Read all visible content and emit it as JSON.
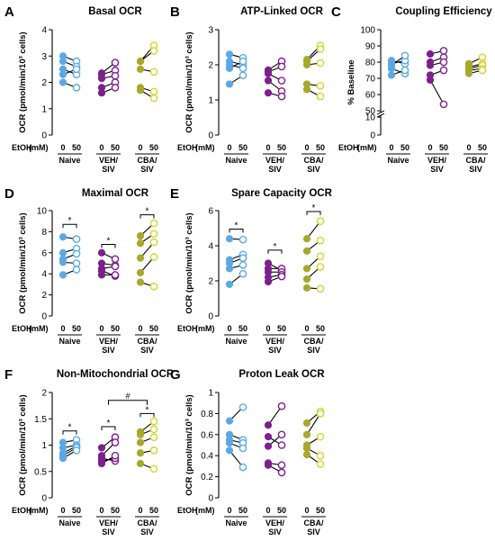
{
  "figure": {
    "ylabel_ocr": "OCR (pmol/min/10³ cells)",
    "ylabel_pct": "% Baseline",
    "etoh_label": "EtOH",
    "unit_label": "(mM)",
    "dose_labels": [
      "0",
      "50"
    ],
    "group_labels": [
      [
        "Naive"
      ],
      [
        "VEH/",
        "SIV"
      ],
      [
        "CBA/",
        "SIV"
      ]
    ],
    "colors": {
      "naive": "#5aa9e6",
      "veh": "#7e1f8e",
      "cba": "#a8a82a",
      "cba_light": "#d4d430",
      "line": "#000000"
    }
  },
  "chart_data": [
    {
      "panel": "A",
      "type": "scatter",
      "title": "Basal OCR",
      "yaxis": "ocr",
      "ylim": [
        0,
        4
      ],
      "yticks": [
        0,
        1,
        2,
        3,
        4
      ],
      "groups": [
        {
          "name": "Naive",
          "pairs": [
            [
              3.0,
              2.8
            ],
            [
              2.8,
              2.6
            ],
            [
              2.5,
              2.3
            ],
            [
              2.3,
              2.5
            ],
            [
              2.0,
              1.8
            ]
          ]
        },
        {
          "name": "VEH/SIV",
          "pairs": [
            [
              2.35,
              2.75
            ],
            [
              2.3,
              2.45
            ],
            [
              2.15,
              2.25
            ],
            [
              1.8,
              2.0
            ],
            [
              1.6,
              1.8
            ]
          ]
        },
        {
          "name": "CBA/SIV",
          "pairs": [
            [
              2.8,
              3.4
            ],
            [
              2.8,
              3.2
            ],
            [
              2.5,
              2.4
            ],
            [
              1.8,
              1.65
            ],
            [
              1.7,
              1.4
            ]
          ]
        }
      ],
      "brackets": []
    },
    {
      "panel": "B",
      "type": "scatter",
      "title": "ATP-Linked OCR",
      "yaxis": "ocr",
      "ylim": [
        0,
        3
      ],
      "yticks": [
        0,
        1,
        2,
        3
      ],
      "groups": [
        {
          "name": "Naive",
          "pairs": [
            [
              2.3,
              2.2
            ],
            [
              2.1,
              2.0
            ],
            [
              2.0,
              1.9
            ],
            [
              1.9,
              2.1
            ],
            [
              1.45,
              1.7
            ]
          ]
        },
        {
          "name": "VEH/SIV",
          "pairs": [
            [
              1.85,
              2.1
            ],
            [
              1.8,
              1.95
            ],
            [
              1.75,
              1.55
            ],
            [
              1.55,
              1.25
            ],
            [
              1.2,
              1.1
            ]
          ]
        },
        {
          "name": "CBA/SIV",
          "pairs": [
            [
              2.15,
              2.55
            ],
            [
              2.1,
              2.45
            ],
            [
              2.0,
              2.05
            ],
            [
              1.45,
              1.4
            ],
            [
              1.3,
              1.1
            ]
          ]
        }
      ],
      "brackets": []
    },
    {
      "panel": "C",
      "type": "scatter",
      "title": "Coupling Efficiency",
      "yaxis": "pct",
      "ylim": [
        0,
        100
      ],
      "yticks": [
        0,
        10,
        50,
        60,
        70,
        80,
        90,
        100
      ],
      "axis_break": [
        10,
        50
      ],
      "groups": [
        {
          "name": "Naive",
          "pairs": [
            [
              81,
              79
            ],
            [
              79,
              81
            ],
            [
              78,
              84
            ],
            [
              76,
              73
            ],
            [
              72,
              75
            ]
          ]
        },
        {
          "name": "VEH/SIV",
          "pairs": [
            [
              85,
              87
            ],
            [
              80,
              83
            ],
            [
              78,
              80
            ],
            [
              72,
              75
            ],
            [
              69,
              54
            ]
          ]
        },
        {
          "name": "CBA/SIV",
          "pairs": [
            [
              79,
              83
            ],
            [
              77,
              79
            ],
            [
              76,
              78
            ],
            [
              75,
              76
            ],
            [
              73,
              75
            ]
          ]
        }
      ],
      "brackets": []
    },
    {
      "panel": "D",
      "type": "scatter",
      "title": "Maximal OCR",
      "yaxis": "ocr",
      "ylim": [
        0,
        10
      ],
      "yticks": [
        0,
        2,
        4,
        6,
        8,
        10
      ],
      "groups": [
        {
          "name": "Naive",
          "pairs": [
            [
              7.5,
              7.3
            ],
            [
              6.0,
              6.4
            ],
            [
              5.4,
              5.9
            ],
            [
              5.1,
              5.0
            ],
            [
              3.9,
              4.4
            ]
          ]
        },
        {
          "name": "VEH/SIV",
          "pairs": [
            [
              6.0,
              5.4
            ],
            [
              5.0,
              4.8
            ],
            [
              4.5,
              4.7
            ],
            [
              4.3,
              3.8
            ],
            [
              3.9,
              3.9
            ]
          ]
        },
        {
          "name": "CBA/SIV",
          "pairs": [
            [
              7.6,
              8.8
            ],
            [
              6.9,
              7.8
            ],
            [
              5.5,
              7.0
            ],
            [
              4.1,
              5.6
            ],
            [
              3.2,
              2.8
            ]
          ]
        }
      ],
      "brackets": [
        {
          "group": "Naive",
          "y": 8.7,
          "label": "*"
        },
        {
          "group": "VEH/SIV",
          "y": 6.8,
          "label": "*"
        },
        {
          "group": "CBA/SIV",
          "y": 9.6,
          "label": "*"
        }
      ]
    },
    {
      "panel": "E",
      "type": "scatter",
      "title": "Spare Capacity OCR",
      "yaxis": "ocr",
      "ylim": [
        0,
        6
      ],
      "yticks": [
        0,
        2,
        4,
        6
      ],
      "groups": [
        {
          "name": "Naive",
          "pairs": [
            [
              4.4,
              4.35
            ],
            [
              3.2,
              3.5
            ],
            [
              3.0,
              3.3
            ],
            [
              2.7,
              2.9
            ],
            [
              1.8,
              2.4
            ]
          ]
        },
        {
          "name": "VEH/SIV",
          "pairs": [
            [
              3.0,
              2.6
            ],
            [
              2.7,
              2.7
            ],
            [
              2.5,
              2.5
            ],
            [
              2.2,
              2.35
            ],
            [
              1.95,
              2.25
            ]
          ]
        },
        {
          "name": "CBA/SIV",
          "pairs": [
            [
              4.4,
              5.4
            ],
            [
              3.7,
              4.3
            ],
            [
              2.7,
              3.4
            ],
            [
              2.1,
              2.8
            ],
            [
              1.6,
              1.55
            ]
          ]
        }
      ],
      "brackets": [
        {
          "group": "Naive",
          "y": 4.95,
          "label": "*"
        },
        {
          "group": "VEH/SIV",
          "y": 3.75,
          "label": "*"
        },
        {
          "group": "CBA/SIV",
          "y": 5.95,
          "label": "*"
        }
      ]
    },
    {
      "panel": "F",
      "type": "scatter",
      "title": "Non-Mitochondrial OCR",
      "yaxis": "ocr",
      "ylim": [
        0,
        2
      ],
      "yticks": [
        0,
        0.5,
        1.0,
        1.5,
        2.0
      ],
      "groups": [
        {
          "name": "Naive",
          "pairs": [
            [
              1.05,
              1.1
            ],
            [
              0.95,
              1.0
            ],
            [
              0.85,
              0.98
            ],
            [
              0.8,
              0.95
            ],
            [
              0.75,
              0.9
            ]
          ]
        },
        {
          "name": "VEH/SIV",
          "pairs": [
            [
              0.95,
              1.15
            ],
            [
              0.8,
              1.05
            ],
            [
              0.75,
              0.7
            ],
            [
              0.7,
              0.75
            ],
            [
              0.65,
              0.8
            ]
          ]
        },
        {
          "name": "CBA/SIV",
          "pairs": [
            [
              1.25,
              1.45
            ],
            [
              1.2,
              1.3
            ],
            [
              1.05,
              1.15
            ],
            [
              0.85,
              0.9
            ],
            [
              0.65,
              0.55
            ]
          ]
        }
      ],
      "brackets": [
        {
          "group": "Naive",
          "y": 1.27,
          "label": "*"
        },
        {
          "group": "VEH/SIV",
          "y": 1.35,
          "label": "*"
        },
        {
          "group": "CBA/SIV",
          "y": 1.6,
          "label": "*"
        },
        {
          "between": [
            "VEH/SIV",
            "CBA/SIV"
          ],
          "y": 1.85,
          "label": "#"
        }
      ]
    },
    {
      "panel": "G",
      "type": "scatter",
      "title": "Proton Leak OCR",
      "yaxis": "ocr",
      "ylim": [
        0,
        1.0
      ],
      "yticks": [
        0,
        0.2,
        0.4,
        0.6,
        0.8,
        1.0
      ],
      "groups": [
        {
          "name": "Naive",
          "pairs": [
            [
              0.73,
              0.86
            ],
            [
              0.6,
              0.55
            ],
            [
              0.55,
              0.52
            ],
            [
              0.52,
              0.47
            ],
            [
              0.45,
              0.29
            ]
          ]
        },
        {
          "name": "VEH/SIV",
          "pairs": [
            [
              0.69,
              0.87
            ],
            [
              0.58,
              0.5
            ],
            [
              0.49,
              0.6
            ],
            [
              0.33,
              0.31
            ],
            [
              0.31,
              0.24
            ]
          ]
        },
        {
          "name": "CBA/SIV",
          "pairs": [
            [
              0.71,
              0.82
            ],
            [
              0.6,
              0.8
            ],
            [
              0.5,
              0.58
            ],
            [
              0.47,
              0.4
            ],
            [
              0.41,
              0.32
            ]
          ]
        }
      ],
      "brackets": []
    }
  ]
}
